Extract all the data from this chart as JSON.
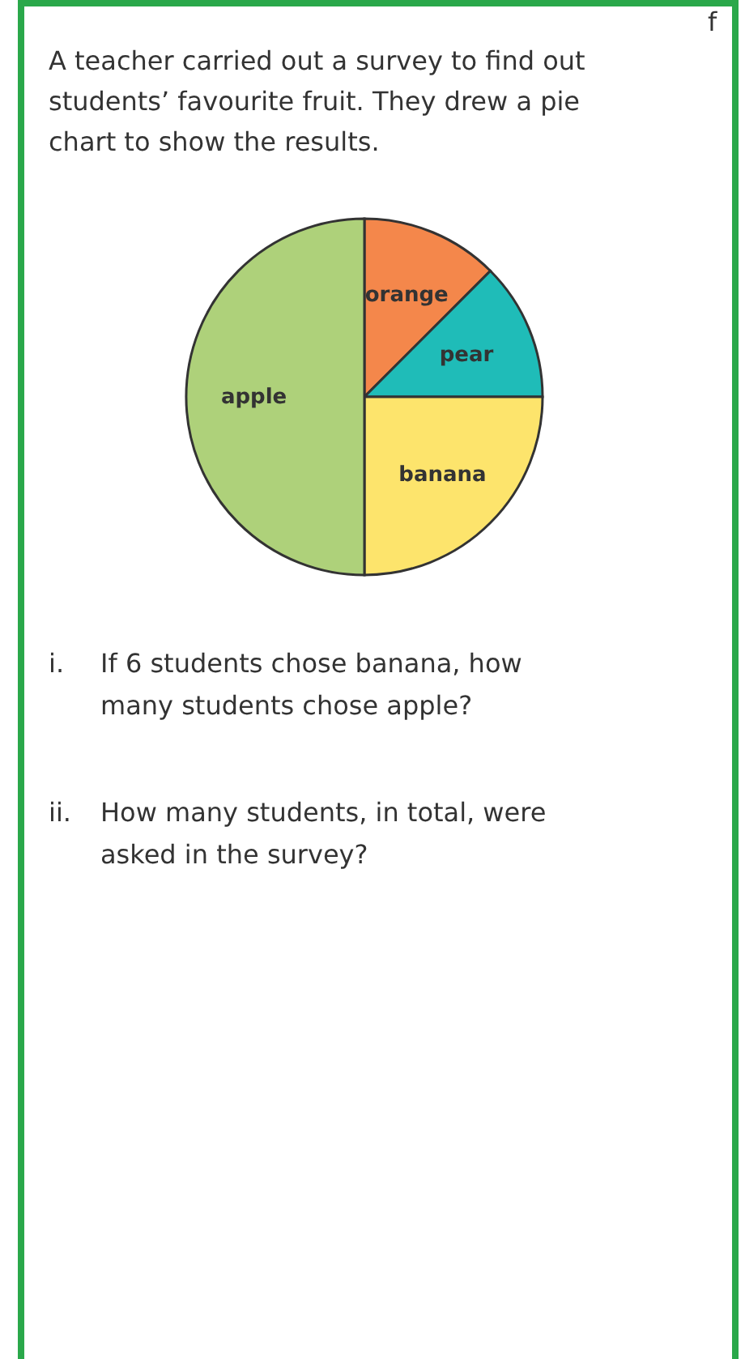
{
  "chart_data": {
    "type": "pie",
    "title": "A teacher carried out a survey to find out students’ favourite fruit. They drew a pie chart to show the results.",
    "categories": [
      "orange",
      "pear",
      "banana",
      "apple"
    ],
    "values": [
      12.5,
      12.5,
      25,
      50
    ],
    "colors": [
      "#f4874b",
      "#1fbcb8",
      "#fde46c",
      "#aed17a"
    ],
    "annotations": [
      "f",
      "i. If 6 students chose banana, how many students chose apple?",
      "ii. How many students, in total, were asked in the survey?"
    ]
  }
}
